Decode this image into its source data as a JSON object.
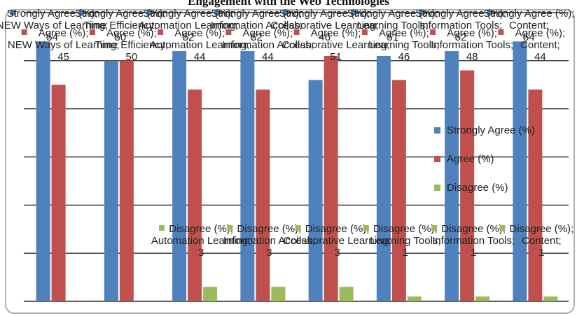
{
  "title": "Engagement with the Web Technologies",
  "chart_data": {
    "type": "bar",
    "title": "",
    "xlabel": "",
    "ylabel": "",
    "categories": [
      "NEW Ways of Learning",
      "Time Efficiency",
      "Automation Learning",
      "Information Access",
      "Collaborative Learning",
      "Learning Tools",
      "Information Tools",
      "Content"
    ],
    "series": [
      {
        "name": "Strongly Agree (%)",
        "color": "#4F81BD",
        "values": [
          54,
          50,
          52,
          52,
          46,
          51,
          52,
          54
        ]
      },
      {
        "name": "Agree (%)",
        "color": "#C0504D",
        "values": [
          45,
          50,
          44,
          44,
          51,
          46,
          48,
          44
        ]
      },
      {
        "name": "Disagree (%)",
        "color": "#9BBB59",
        "values": [
          null,
          null,
          3,
          3,
          3,
          1,
          1,
          1
        ]
      }
    ],
    "ylim": [
      0,
      60
    ],
    "grid": true,
    "legend": "right",
    "data_labels": [
      {
        "series": "Strongly Agree (%)",
        "category": "NEW Ways of Learning",
        "text": "Strongly Agree (%); NEW Ways of Learning; 54"
      },
      {
        "series": "Agree (%)",
        "category": "NEW Ways of Learning",
        "text": "Agree (%); NEW Ways of Learning; 45"
      },
      {
        "series": "Strongly Agree (%)",
        "category": "Time Efficiency",
        "text": "Strongly Agree (%); Time Efficiency; 50"
      },
      {
        "series": "Agree (%)",
        "category": "Time Efficiency",
        "text": "Agree (%); Time Efficiency; 50"
      },
      {
        "series": "Strongly Agree (%)",
        "category": "Automation Learning",
        "text": "Strongly Agree (%); Automation Learning; 52"
      },
      {
        "series": "Agree (%)",
        "category": "Automation Learning",
        "text": "Agree (%); Automation Learning; 44"
      },
      {
        "series": "Strongly Agree (%)",
        "category": "Information Access",
        "text": "Strongly Agree (%); Information Access; 52"
      },
      {
        "series": "Agree (%)",
        "category": "Information Access",
        "text": "Agree (%); Information Access; 44"
      },
      {
        "series": "Strongly Agree (%)",
        "category": "Collaborative Learning",
        "text": "Strongly Agree (%); Collaborative Learning; 46"
      },
      {
        "series": "Agree (%)",
        "category": "Collaborative Learning",
        "text": "Agree (%); Collaborative Learning; 51"
      },
      {
        "series": "Strongly Agree (%)",
        "category": "Learning Tools",
        "text": "Strongly Agree (%); Learning Tools; 51"
      },
      {
        "series": "Agree (%)",
        "category": "Learning Tools",
        "text": "Agree (%); Learning Tools; 46"
      },
      {
        "series": "Strongly Agree (%)",
        "category": "Information Tools",
        "text": "Strongly Agree (%); Information Tools; 52"
      },
      {
        "series": "Agree (%)",
        "category": "Information Tools",
        "text": "Agree (%); Information Tools; 48"
      },
      {
        "series": "Strongly Agree (%)",
        "category": "Content",
        "text": "Strongly Agree (%); Content; 54"
      },
      {
        "series": "Agree (%)",
        "category": "Content",
        "text": "Agree (%); Content; 44"
      },
      {
        "series": "Disagree (%)",
        "category": "Automation Learning",
        "text": "Disagree (%); Automation Learning; 3"
      },
      {
        "series": "Disagree (%)",
        "category": "Information Access",
        "text": "Disagree (%); Information Access; 3"
      },
      {
        "series": "Disagree (%)",
        "category": "Collaborative Learning",
        "text": "Disagree (%); Collaborative Learning; 3"
      },
      {
        "series": "Disagree (%)",
        "category": "Learning Tools",
        "text": "Disagree (%); Learning Tools; 1"
      },
      {
        "series": "Disagree (%)",
        "category": "Information Tools",
        "text": "Disagree (%); Information Tools; 1"
      },
      {
        "series": "Disagree (%)",
        "category": "Content",
        "text": "Disagree (%); Content; 1"
      }
    ]
  }
}
